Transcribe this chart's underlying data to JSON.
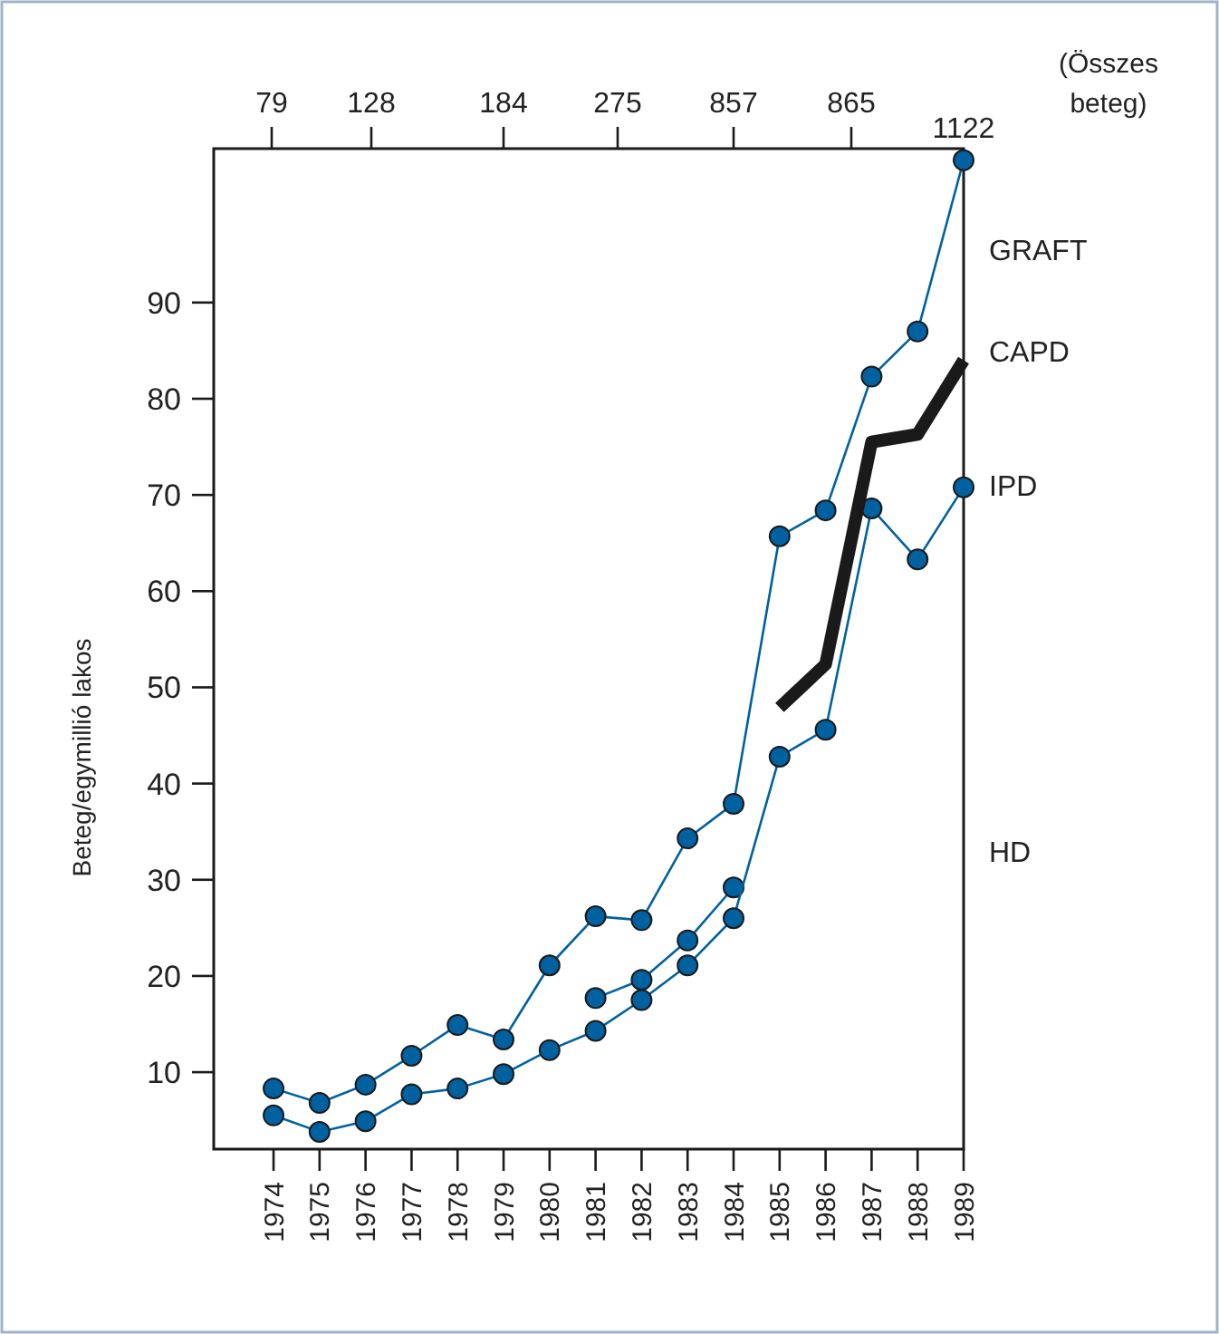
{
  "chart_data": {
    "type": "line",
    "ylabel": "Beteg/egymillió lakos",
    "x2label": "(Összes beteg)",
    "x": [
      1974,
      1975,
      1976,
      1977,
      1978,
      1979,
      1980,
      1981,
      1982,
      1983,
      1984,
      1985,
      1986,
      1987,
      1988,
      1989
    ],
    "series": [
      {
        "color": "#0061a1",
        "values": [
          8.3,
          6.8,
          8.7,
          11.7,
          14.9,
          13.4,
          21.1,
          26.2,
          25.8,
          34.3,
          37.9,
          65.7,
          68.4,
          82.3,
          87.0,
          104.8
        ]
      },
      {
        "color": "#0061a1",
        "values": [
          null,
          null,
          null,
          null,
          null,
          null,
          null,
          17.7,
          19.6,
          23.7,
          29.2,
          null,
          null,
          null,
          null,
          null
        ]
      },
      {
        "color": "#0061a1",
        "values": [
          5.5,
          3.8,
          4.9,
          7.7,
          8.3,
          9.8,
          12.3,
          14.3,
          17.5,
          21.1,
          26.0,
          42.8,
          45.6,
          68.6,
          63.3,
          70.8
        ]
      },
      {
        "color": "#1a1a1a",
        "marker": "none",
        "values": [
          null,
          null,
          null,
          null,
          null,
          null,
          null,
          null,
          null,
          null,
          null,
          47.9,
          52.4,
          75.5,
          76.3,
          84.0
        ]
      }
    ],
    "marker": "circle",
    "grid": false,
    "xlim": [
      1972.7,
      1989
    ],
    "xticks": [
      1974,
      1975,
      1976,
      1977,
      1978,
      1979,
      1980,
      1981,
      1982,
      1983,
      1984,
      1985,
      1986,
      1987,
      1988,
      1989
    ],
    "ylim": [
      2,
      106
    ],
    "yticks": [
      10,
      20,
      30,
      40,
      50,
      60,
      70,
      80,
      90
    ],
    "annotations": [
      "79",
      "128",
      "184",
      "275",
      "857",
      "865",
      "1122",
      "GRAFT",
      "CAPD",
      "IPD",
      "HD"
    ]
  }
}
